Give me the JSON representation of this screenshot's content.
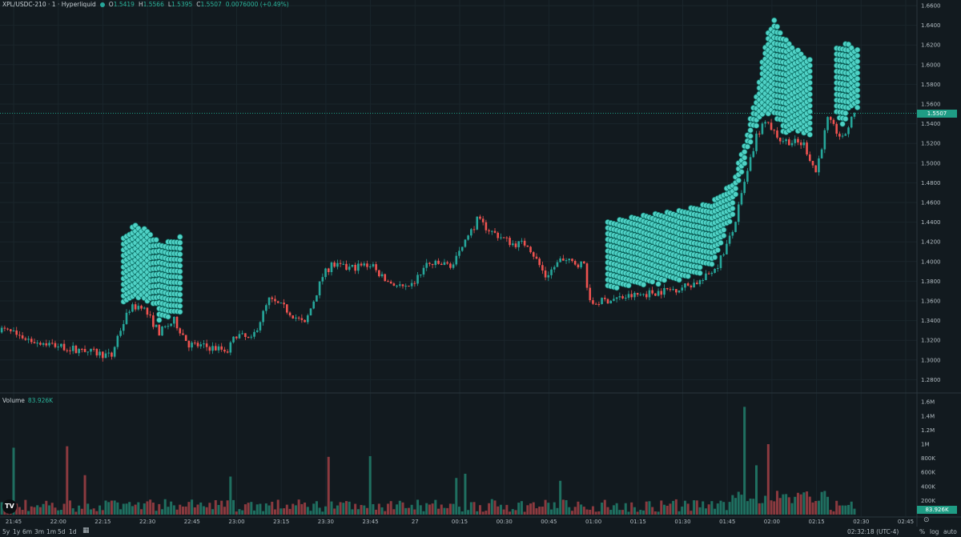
{
  "header": {
    "symbol": "XPL/USDC-210 · 1 · Hyperliquid",
    "o_label": "O",
    "o": "1.5419",
    "h_label": "H",
    "h": "1.5566",
    "l_label": "L",
    "l": "1.5395",
    "c_label": "C",
    "c": "1.5507",
    "change": "0.0076000 (+0.49%)"
  },
  "volume_header": {
    "label": "Volume",
    "value": "83.926K"
  },
  "last_price_tag": "1.5507",
  "last_volume_tag": "83.926K",
  "bottom_bar": {
    "ranges": [
      "5y",
      "1y",
      "6m",
      "3m",
      "1m",
      "5d",
      "1d"
    ],
    "clock": "02:32:18 (UTC-4)",
    "percent": "%",
    "log": "log",
    "auto": "auto"
  },
  "colors": {
    "up": "#26a69a",
    "down": "#ef5350",
    "vol_up": "#1f6f60",
    "vol_down": "#8b3a3f",
    "bubble": "#4fd1c5",
    "bg": "#121a1f"
  },
  "chart_data": {
    "type": "candlestick",
    "title": "XPL/USDC-210 · 1 · Hyperliquid",
    "x_unit": "minutes since 21:45",
    "ylim": [
      1.27,
      1.665
    ],
    "price_ticks": [
      "1.6600",
      "1.6400",
      "1.6200",
      "1.6000",
      "1.5800",
      "1.5600",
      "1.5400",
      "1.5200",
      "1.5000",
      "1.4800",
      "1.4600",
      "1.4400",
      "1.4200",
      "1.4000",
      "1.3800",
      "1.3600",
      "1.3400",
      "1.3200",
      "1.3000",
      "1.2800"
    ],
    "time_ticks": [
      "21:45",
      "22:00",
      "22:15",
      "22:30",
      "22:45",
      "23:00",
      "23:15",
      "23:30",
      "23:45",
      "27",
      "00:15",
      "00:30",
      "00:45",
      "01:00",
      "01:15",
      "01:30",
      "01:45",
      "02:00",
      "02:15",
      "02:30",
      "02:45"
    ],
    "volume_ticks": [
      "1.6M",
      "1.4M",
      "1.2M",
      "1M",
      "800K",
      "600K",
      "400K",
      "200K"
    ],
    "close_path": [
      [
        -5,
        1.332
      ],
      [
        6,
        1.32
      ],
      [
        19,
        1.312
      ],
      [
        33,
        1.304
      ],
      [
        35,
        1.324
      ],
      [
        39,
        1.352
      ],
      [
        43,
        1.356
      ],
      [
        49,
        1.328
      ],
      [
        54,
        1.34
      ],
      [
        59,
        1.316
      ],
      [
        72,
        1.31
      ],
      [
        75,
        1.326
      ],
      [
        80,
        1.32
      ],
      [
        86,
        1.361
      ],
      [
        91,
        1.353
      ],
      [
        98,
        1.336
      ],
      [
        104,
        1.385
      ],
      [
        107,
        1.397
      ],
      [
        112,
        1.393
      ],
      [
        120,
        1.397
      ],
      [
        125,
        1.381
      ],
      [
        133,
        1.371
      ],
      [
        139,
        1.397
      ],
      [
        148,
        1.397
      ],
      [
        156,
        1.442
      ],
      [
        161,
        1.43
      ],
      [
        168,
        1.418
      ],
      [
        173,
        1.418
      ],
      [
        179,
        1.385
      ],
      [
        184,
        1.401
      ],
      [
        192,
        1.397
      ],
      [
        194,
        1.357
      ],
      [
        200,
        1.361
      ],
      [
        208,
        1.365
      ],
      [
        216,
        1.369
      ],
      [
        224,
        1.373
      ],
      [
        232,
        1.381
      ],
      [
        237,
        1.397
      ],
      [
        242,
        1.43
      ],
      [
        246,
        1.479
      ],
      [
        250,
        1.527
      ],
      [
        253,
        1.544
      ],
      [
        258,
        1.524
      ],
      [
        266,
        1.519
      ],
      [
        270,
        1.491
      ],
      [
        274,
        1.544
      ],
      [
        279,
        1.524
      ],
      [
        283,
        1.5507
      ]
    ],
    "volume_spikes": [
      [
        0,
        950000
      ],
      [
        18,
        970000
      ],
      [
        24,
        560000
      ],
      [
        73,
        540000
      ],
      [
        106,
        820000
      ],
      [
        120,
        830000
      ],
      [
        149,
        520000
      ],
      [
        152,
        580000
      ],
      [
        184,
        480000
      ],
      [
        246,
        1530000
      ],
      [
        250,
        700000
      ],
      [
        254,
        1000000
      ],
      [
        283,
        83926
      ]
    ],
    "bubble_regions": [
      {
        "from": 37,
        "to": 56,
        "top": [
          [
            37,
            1.425
          ],
          [
            41,
            1.438
          ],
          [
            46,
            1.43
          ],
          [
            49,
            1.418
          ],
          [
            52,
            1.42
          ],
          [
            56,
            1.425
          ]
        ]
      },
      {
        "from": 200,
        "to": 268,
        "top": [
          [
            200,
            1.44
          ],
          [
            210,
            1.446
          ],
          [
            225,
            1.452
          ],
          [
            235,
            1.46
          ],
          [
            242,
            1.48
          ],
          [
            246,
            1.52
          ],
          [
            250,
            1.57
          ],
          [
            254,
            1.635
          ],
          [
            256,
            1.645
          ],
          [
            260,
            1.625
          ],
          [
            265,
            1.612
          ],
          [
            268,
            1.605
          ]
        ]
      },
      {
        "from": 277,
        "to": 284,
        "top": [
          [
            277,
            1.618
          ],
          [
            281,
            1.622
          ],
          [
            284,
            1.615
          ]
        ]
      }
    ]
  }
}
